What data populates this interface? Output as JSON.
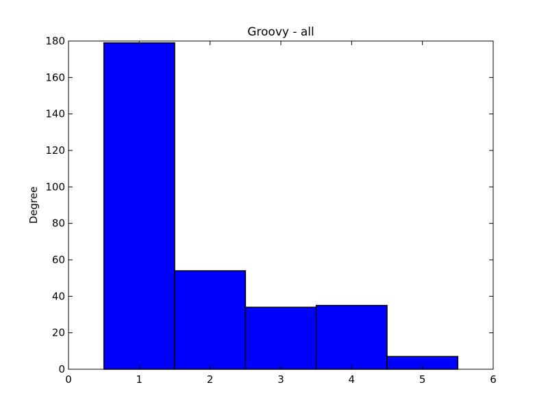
{
  "chart_data": {
    "type": "bar",
    "title": "Groovy - all",
    "xlabel": "",
    "ylabel": "Degree",
    "xlim": [
      0,
      6
    ],
    "ylim": [
      0,
      180
    ],
    "x_ticks": [
      0,
      1,
      2,
      3,
      4,
      5,
      6
    ],
    "y_ticks": [
      0,
      20,
      40,
      60,
      80,
      100,
      120,
      140,
      160,
      180
    ],
    "bar_width": 1,
    "categories": [
      1,
      2,
      3,
      4,
      5
    ],
    "values": [
      179,
      54,
      34,
      35,
      7
    ],
    "grid": false,
    "bar_color": "#0000ff",
    "edge_color": "#000000"
  }
}
